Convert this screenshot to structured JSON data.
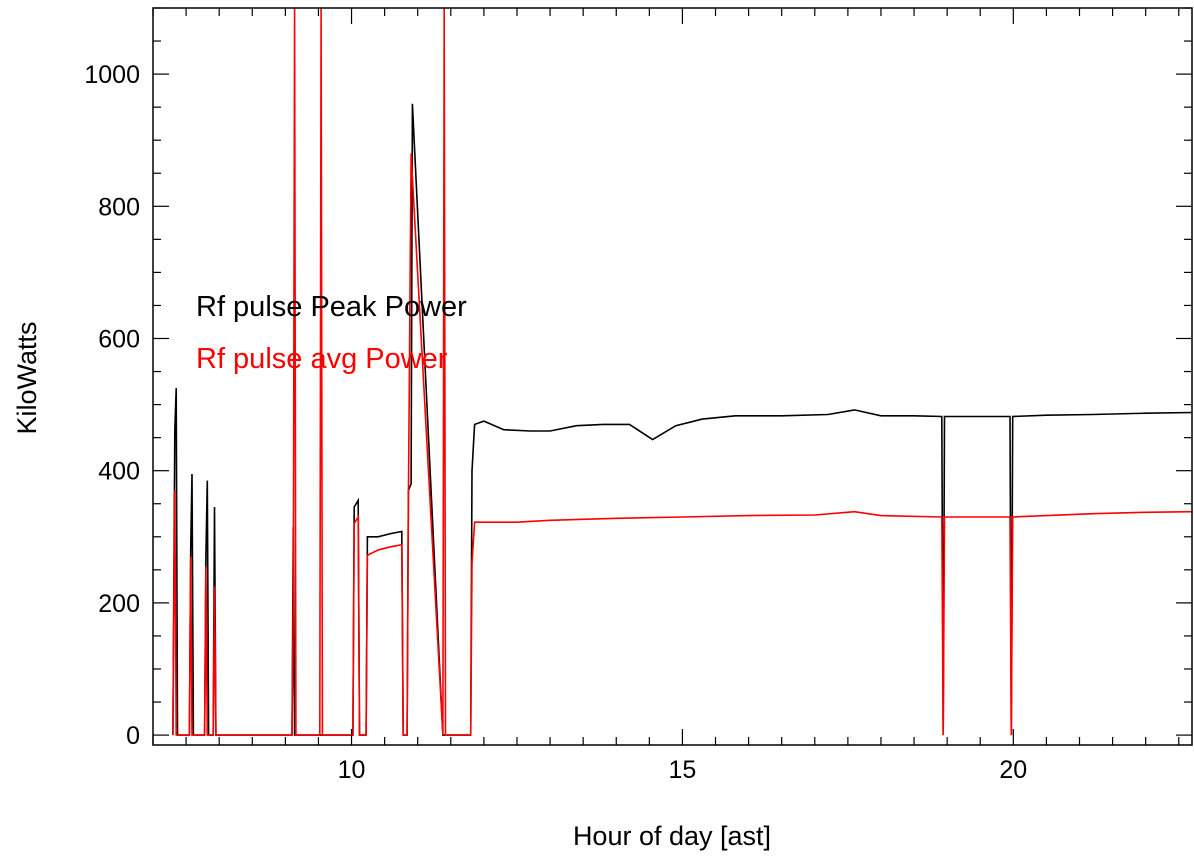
{
  "chart_data": {
    "type": "line",
    "xlabel": "Hour of day [ast]",
    "ylabel": "KiloWatts",
    "xlim": [
      7.0,
      22.7
    ],
    "ylim": [
      -15,
      1100
    ],
    "x_major_ticks": [
      10,
      15,
      20
    ],
    "x_major_tick_labels": [
      "10",
      "15",
      "20"
    ],
    "y_major_ticks": [
      0,
      200,
      400,
      600,
      800,
      1000
    ],
    "y_major_tick_labels": [
      "0",
      "200",
      "400",
      "600",
      "800",
      "1000"
    ],
    "grid": false,
    "legend_placement": "upper-left (inline text)",
    "series": [
      {
        "name": "Rf pulse Peak Power",
        "color": "#000000",
        "points": [
          [
            7.3,
            0
          ],
          [
            7.33,
            460
          ],
          [
            7.35,
            525
          ],
          [
            7.37,
            0
          ],
          [
            7.55,
            0
          ],
          [
            7.57,
            280
          ],
          [
            7.59,
            395
          ],
          [
            7.61,
            0
          ],
          [
            7.78,
            0
          ],
          [
            7.8,
            270
          ],
          [
            7.82,
            385
          ],
          [
            7.84,
            0
          ],
          [
            7.91,
            0
          ],
          [
            7.93,
            345
          ],
          [
            7.95,
            0
          ],
          [
            9.1,
            0
          ],
          [
            9.12,
            315
          ],
          [
            9.14,
            0
          ],
          [
            10.02,
            0
          ],
          [
            10.04,
            345
          ],
          [
            10.1,
            355
          ],
          [
            10.12,
            0
          ],
          [
            10.22,
            0
          ],
          [
            10.24,
            300
          ],
          [
            10.4,
            300
          ],
          [
            10.6,
            305
          ],
          [
            10.76,
            308
          ],
          [
            10.78,
            0
          ],
          [
            10.84,
            0
          ],
          [
            10.86,
            370
          ],
          [
            10.9,
            380
          ],
          [
            10.92,
            955
          ],
          [
            11.38,
            0
          ],
          [
            11.8,
            0
          ],
          [
            11.82,
            400
          ],
          [
            11.86,
            470
          ],
          [
            12.0,
            475
          ],
          [
            12.3,
            462
          ],
          [
            12.7,
            460
          ],
          [
            13.0,
            460
          ],
          [
            13.4,
            468
          ],
          [
            13.8,
            470
          ],
          [
            14.2,
            470
          ],
          [
            14.55,
            447
          ],
          [
            14.9,
            468
          ],
          [
            15.3,
            478
          ],
          [
            15.8,
            483
          ],
          [
            16.5,
            483
          ],
          [
            17.2,
            485
          ],
          [
            17.6,
            492
          ],
          [
            18.0,
            483
          ],
          [
            18.5,
            483
          ],
          [
            18.92,
            482
          ],
          [
            18.94,
            0
          ],
          [
            18.96,
            482
          ],
          [
            19.5,
            482
          ],
          [
            19.95,
            482
          ],
          [
            19.97,
            0
          ],
          [
            19.99,
            482
          ],
          [
            20.5,
            484
          ],
          [
            21.2,
            485
          ],
          [
            22.0,
            487
          ],
          [
            22.7,
            488
          ]
        ]
      },
      {
        "name": "Rf pulse  avg Power",
        "color": "#ff0000",
        "points": [
          [
            7.3,
            0
          ],
          [
            7.33,
            370
          ],
          [
            7.35,
            0
          ],
          [
            7.55,
            0
          ],
          [
            7.57,
            270
          ],
          [
            7.59,
            0
          ],
          [
            7.78,
            0
          ],
          [
            7.8,
            255
          ],
          [
            7.82,
            0
          ],
          [
            7.91,
            0
          ],
          [
            7.93,
            225
          ],
          [
            7.95,
            0
          ],
          [
            9.1,
            0
          ],
          [
            9.12,
            200
          ],
          [
            9.14,
            1100
          ],
          [
            9.16,
            0
          ],
          [
            9.52,
            0
          ],
          [
            9.54,
            1100
          ],
          [
            9.56,
            0
          ],
          [
            10.02,
            0
          ],
          [
            10.04,
            320
          ],
          [
            10.1,
            330
          ],
          [
            10.12,
            0
          ],
          [
            10.22,
            0
          ],
          [
            10.24,
            272
          ],
          [
            10.4,
            280
          ],
          [
            10.6,
            285
          ],
          [
            10.76,
            288
          ],
          [
            10.78,
            0
          ],
          [
            10.84,
            0
          ],
          [
            10.86,
            355
          ],
          [
            10.9,
            880
          ],
          [
            11.38,
            0
          ],
          [
            11.4,
            1100
          ],
          [
            11.42,
            0
          ],
          [
            11.8,
            0
          ],
          [
            11.82,
            260
          ],
          [
            11.86,
            322
          ],
          [
            12.5,
            322
          ],
          [
            13.0,
            325
          ],
          [
            14.0,
            328
          ],
          [
            15.0,
            330
          ],
          [
            16.0,
            332
          ],
          [
            17.0,
            333
          ],
          [
            17.6,
            338
          ],
          [
            18.0,
            332
          ],
          [
            18.92,
            330
          ],
          [
            18.94,
            0
          ],
          [
            18.96,
            330
          ],
          [
            19.5,
            330
          ],
          [
            19.95,
            330
          ],
          [
            19.97,
            0
          ],
          [
            19.99,
            330
          ],
          [
            20.5,
            332
          ],
          [
            21.2,
            335
          ],
          [
            22.0,
            337
          ],
          [
            22.7,
            338
          ]
        ]
      }
    ],
    "legend_entries": [
      {
        "text": "Rf pulse Peak Power",
        "color": "#000000"
      },
      {
        "text": "Rf pulse  avg Power",
        "color": "#ff0000"
      }
    ]
  }
}
